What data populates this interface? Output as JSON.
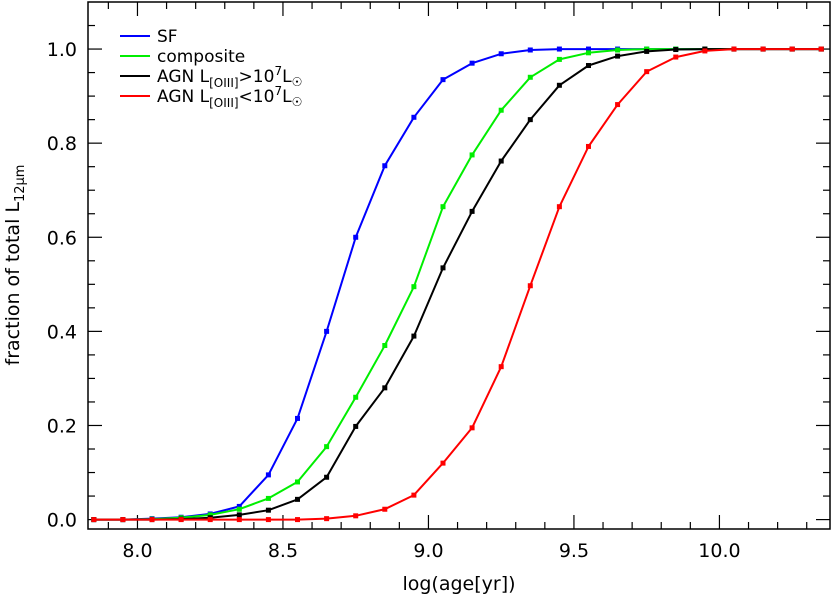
{
  "chart_data": {
    "type": "line",
    "xlabel": "log(age[yr])",
    "ylabel_main": "fraction of total L",
    "ylabel_sub": "12μm",
    "xlim": [
      7.83,
      10.38
    ],
    "ylim": [
      -0.02,
      1.1
    ],
    "xticks": [
      8.0,
      8.5,
      9.0,
      9.5,
      10.0
    ],
    "xtick_labels": [
      "8.0",
      "8.5",
      "9.0",
      "9.5",
      "10.0"
    ],
    "yticks": [
      0.0,
      0.2,
      0.4,
      0.6,
      0.8,
      1.0
    ],
    "ytick_labels": [
      "0.0",
      "0.2",
      "0.4",
      "0.6",
      "0.8",
      "1.0"
    ],
    "grid": false,
    "legend_position": "top-left",
    "x": [
      7.85,
      7.95,
      8.05,
      8.15,
      8.25,
      8.35,
      8.45,
      8.55,
      8.65,
      8.75,
      8.85,
      8.95,
      9.05,
      9.15,
      9.25,
      9.35,
      9.45,
      9.55,
      9.65,
      9.75,
      9.85,
      9.95,
      10.05,
      10.15,
      10.25,
      10.35
    ],
    "series": [
      {
        "name": "SF",
        "color": "#0000ff",
        "values": [
          0.0,
          0.0,
          0.002,
          0.005,
          0.012,
          0.028,
          0.095,
          0.215,
          0.4,
          0.6,
          0.752,
          0.855,
          0.935,
          0.97,
          0.99,
          0.998,
          1.0,
          1.0,
          1.0,
          1.0,
          1.0,
          1.0,
          1.0,
          1.0,
          1.0,
          1.0
        ]
      },
      {
        "name": "composite",
        "color": "#00ee00",
        "values": [
          0.0,
          0.0,
          0.001,
          0.004,
          0.01,
          0.022,
          0.045,
          0.08,
          0.155,
          0.26,
          0.37,
          0.495,
          0.665,
          0.775,
          0.87,
          0.94,
          0.978,
          0.992,
          0.998,
          1.0,
          1.0,
          1.0,
          1.0,
          1.0,
          1.0,
          1.0
        ]
      },
      {
        "name": "AGN L[OIII]>10^7 L☉",
        "legend_text": [
          "AGN L",
          "[OIII]",
          ">10",
          "7",
          "L",
          "☉"
        ],
        "color": "#000000",
        "values": [
          0.0,
          0.0,
          0.0,
          0.001,
          0.004,
          0.01,
          0.02,
          0.043,
          0.09,
          0.198,
          0.28,
          0.39,
          0.535,
          0.655,
          0.762,
          0.85,
          0.923,
          0.965,
          0.985,
          0.995,
          0.999,
          1.0,
          1.0,
          1.0,
          1.0,
          1.0
        ]
      },
      {
        "name": "AGN L[OIII]<10^7 L☉",
        "legend_text": [
          "AGN L",
          "[OIII]",
          "<10",
          "7",
          "L",
          "☉"
        ],
        "color": "#ff0000",
        "values": [
          0.0,
          0.0,
          0.0,
          0.0,
          0.0,
          0.0,
          0.0,
          0.0,
          0.002,
          0.008,
          0.022,
          0.052,
          0.12,
          0.195,
          0.325,
          0.497,
          0.665,
          0.793,
          0.882,
          0.952,
          0.983,
          0.996,
          1.0,
          1.0,
          1.0,
          1.0
        ]
      }
    ]
  }
}
